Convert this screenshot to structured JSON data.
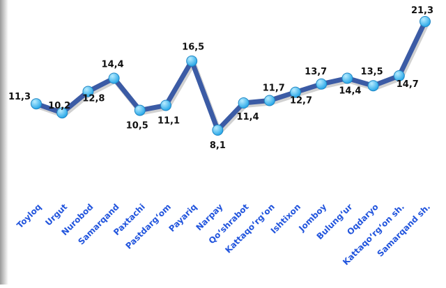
{
  "chart_data": {
    "type": "line",
    "categories": [
      "Toyloq",
      "Urgut",
      "Nurobod",
      "Samarqand",
      "Paxtachi",
      "Pastdarg‘om",
      "Payariq",
      "Narpay",
      "Qo‘shrabot",
      "Kattaqo‘rg‘on",
      "Ishtixon",
      "Jomboy",
      "Bulung‘ur",
      "Oqdaryo",
      "Kattaqo‘rg‘on sh.",
      "Samarqand sh."
    ],
    "values": [
      11.3,
      10.2,
      12.8,
      14.4,
      10.5,
      11.1,
      16.5,
      8.1,
      11.4,
      11.7,
      12.7,
      13.7,
      14.4,
      13.5,
      14.7,
      21.3
    ],
    "value_labels": [
      "11,3",
      "10,2",
      "12,8",
      "14,4",
      "10,5",
      "11,1",
      "16,5",
      "8,1",
      "11,4",
      "11,7",
      "12,7",
      "13,7",
      "14,4",
      "13,5",
      "14,7",
      "21,3"
    ],
    "title": "",
    "xlabel": "",
    "ylabel": "",
    "ylim": [
      8.1,
      21.3
    ],
    "grid": false,
    "legend": "none",
    "colors": {
      "line": "#3b5ba5",
      "marker": "#29a8e8",
      "marker_highlight": "#b8ecff",
      "category_text": "#2255dd",
      "value_text": "#111111"
    }
  }
}
